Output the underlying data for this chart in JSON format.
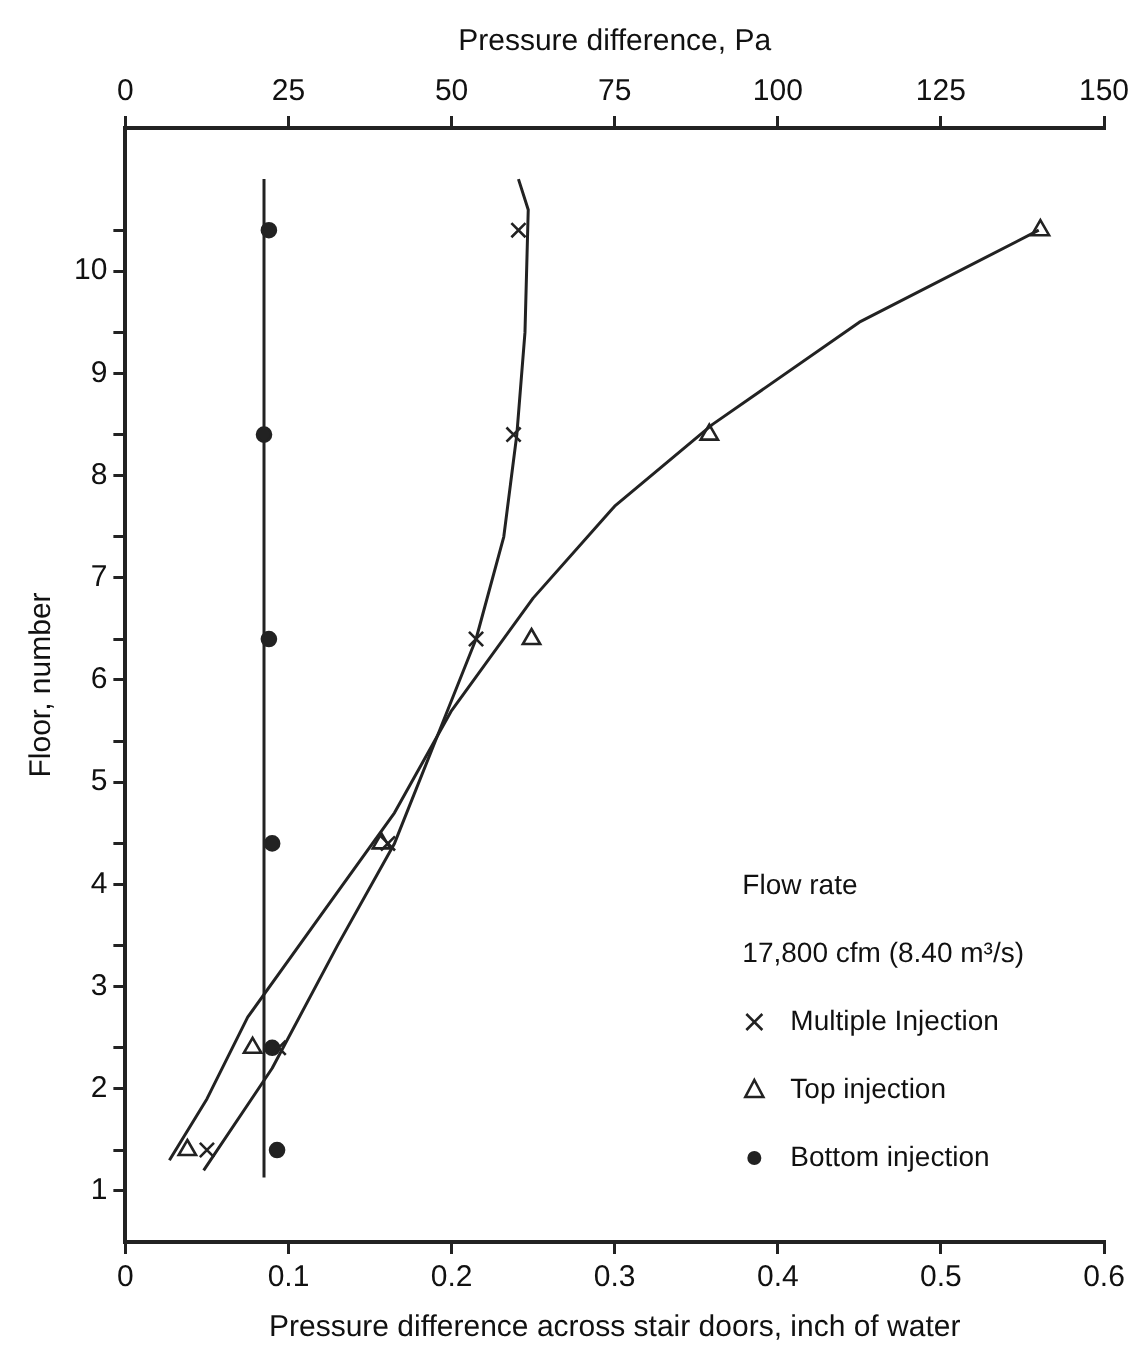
{
  "chart_data": {
    "type": "scatter",
    "xlabel": "Pressure difference across stair doors, inch of water",
    "x2label": "Pressure difference, Pa",
    "ylabel": "Floor, number",
    "xlim": [
      0,
      0.6
    ],
    "xticks": [
      0,
      0.1,
      0.2,
      0.3,
      0.4,
      0.5,
      0.6
    ],
    "x2lim": [
      0,
      150
    ],
    "x2ticks": [
      0,
      25,
      50,
      75,
      100,
      125,
      150
    ],
    "ylim": [
      0.1,
      11
    ],
    "yticks": [
      {
        "value": 1,
        "label": null
      },
      {
        "value": 2,
        "label": null
      },
      {
        "value": 3,
        "label": null
      },
      {
        "value": 4,
        "label": null
      },
      {
        "value": 5,
        "label": null
      },
      {
        "value": 6,
        "label": null
      },
      {
        "value": 7,
        "label": null
      },
      {
        "value": 8,
        "label": null
      },
      {
        "value": 9,
        "label": null
      },
      {
        "value": 10,
        "label": null
      },
      {
        "value": 0.6,
        "label": "1"
      },
      {
        "value": 1.6,
        "label": "2"
      },
      {
        "value": 2.6,
        "label": "3"
      },
      {
        "value": 3.6,
        "label": "4"
      },
      {
        "value": 4.6,
        "label": "5"
      },
      {
        "value": 5.6,
        "label": "6"
      },
      {
        "value": 6.6,
        "label": "7"
      },
      {
        "value": 7.6,
        "label": "8"
      },
      {
        "value": 8.6,
        "label": "9"
      },
      {
        "value": 9.6,
        "label": "10"
      }
    ],
    "grid": false,
    "legend": "bottom right",
    "annotations": [
      "Flow rate",
      "17,800 cfm (8.40 m³/s)"
    ],
    "series": [
      {
        "name": "Multiple Injection",
        "color": "#222222",
        "marker": "cross",
        "x": [
          0.05,
          0.094,
          0.161,
          0.215,
          0.238,
          0.241
        ],
        "values": [
          1,
          2,
          4,
          6,
          8,
          10
        ]
      },
      {
        "name": "Top injection",
        "color": "#222222",
        "marker": "triangle",
        "x": [
          0.038,
          0.078,
          0.157,
          0.249,
          0.358,
          0.561
        ],
        "values": [
          1,
          2,
          4,
          6,
          8,
          10
        ]
      },
      {
        "name": "Bottom injection",
        "color": "#222222",
        "marker": "circle",
        "x": [
          0.093,
          0.09,
          0.09,
          0.088,
          0.085,
          0.088
        ],
        "values": [
          1,
          2,
          4,
          6,
          8,
          10
        ]
      },
      {
        "type": "line",
        "color": "#222222",
        "marker": "none",
        "x": [
          0.048,
          0.09,
          0.13,
          0.165,
          0.19,
          0.215,
          0.232,
          0.24,
          0.245,
          0.247,
          0.241
        ],
        "values": [
          0.8,
          1.8,
          3,
          4,
          5,
          6,
          7,
          8,
          9,
          10.2,
          10.5
        ]
      },
      {
        "type": "line",
        "color": "#222222",
        "marker": "none",
        "x": [
          0.027,
          0.05,
          0.075,
          0.12,
          0.165,
          0.2,
          0.25,
          0.3,
          0.36,
          0.45,
          0.56
        ],
        "values": [
          0.9,
          1.5,
          2.3,
          3.3,
          4.3,
          5.3,
          6.4,
          7.3,
          8.1,
          9.1,
          10
        ]
      },
      {
        "type": "line",
        "color": "#222222",
        "marker": "none",
        "x": [
          0.085,
          0.085
        ],
        "values": [
          0.73,
          10.5
        ]
      }
    ]
  }
}
